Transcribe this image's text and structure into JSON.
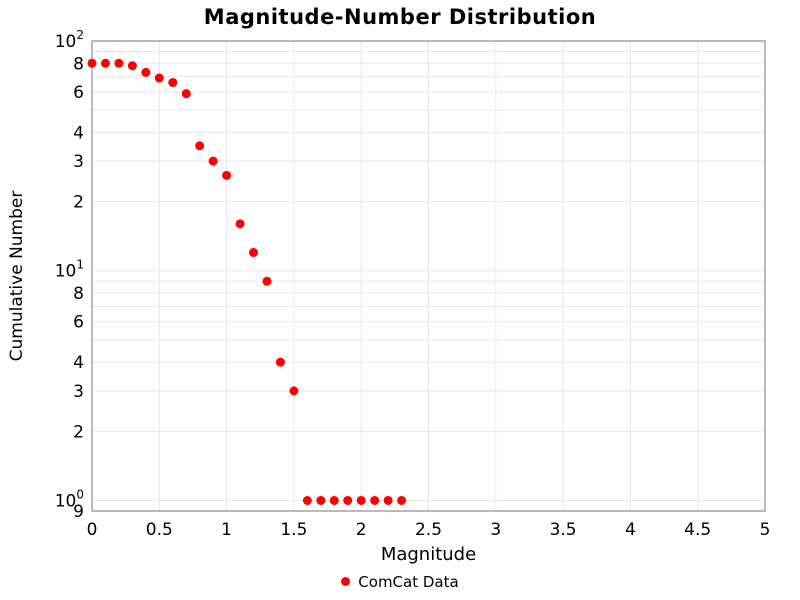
{
  "chart_data": {
    "type": "scatter",
    "title": "Magnitude-Number Distribution",
    "xlabel": "Magnitude",
    "ylabel": "Cumulative Number",
    "series": [
      {
        "name": "ComCat Data",
        "marker_color": "#ff0000",
        "x": [
          0.0,
          0.1,
          0.2,
          0.3,
          0.4,
          0.5,
          0.6,
          0.7,
          0.8,
          0.9,
          1.0,
          1.1,
          1.2,
          1.3,
          1.4,
          1.5,
          1.6,
          1.7,
          1.8,
          1.9,
          2.0,
          2.1,
          2.2,
          2.3
        ],
        "y": [
          80,
          80,
          80,
          78,
          73,
          69,
          66,
          59,
          35,
          30,
          26,
          16,
          12,
          9,
          4,
          3,
          1,
          1,
          1,
          1,
          1,
          1,
          1,
          1
        ]
      }
    ],
    "legend": [
      {
        "name": "ComCat Data",
        "color": "#ff0000"
      }
    ],
    "legend_position": "bottom-center",
    "x_scale": "linear",
    "y_scale": "log",
    "xlim": [
      0,
      5
    ],
    "ylim": [
      0.9,
      100
    ],
    "grid": true,
    "x_ticks": [
      {
        "v": 0,
        "label": "0"
      },
      {
        "v": 0.5,
        "label": "0.5"
      },
      {
        "v": 1,
        "label": "1"
      },
      {
        "v": 1.5,
        "label": "1.5"
      },
      {
        "v": 2,
        "label": "2"
      },
      {
        "v": 2.5,
        "label": "2.5"
      },
      {
        "v": 3,
        "label": "3"
      },
      {
        "v": 3.5,
        "label": "3.5"
      },
      {
        "v": 4,
        "label": "4"
      },
      {
        "v": 4.5,
        "label": "4.5"
      },
      {
        "v": 5,
        "label": "5"
      }
    ],
    "y_ticks": [
      {
        "v": 100,
        "base": "10",
        "exp": "2"
      },
      {
        "v": 80,
        "label": "8"
      },
      {
        "v": 60,
        "label": "6"
      },
      {
        "v": 40,
        "label": "4"
      },
      {
        "v": 30,
        "label": "3"
      },
      {
        "v": 20,
        "label": "2"
      },
      {
        "v": 10,
        "base": "10",
        "exp": "1"
      },
      {
        "v": 8,
        "label": "8"
      },
      {
        "v": 6,
        "label": "6"
      },
      {
        "v": 4,
        "label": "4"
      },
      {
        "v": 3,
        "label": "3"
      },
      {
        "v": 2,
        "label": "2"
      },
      {
        "v": 1,
        "base": "10",
        "exp": "0"
      },
      {
        "v": 0.9,
        "label": "9"
      }
    ],
    "x_gridlines": [
      0.5,
      1,
      1.5,
      2,
      2.5,
      3,
      3.5,
      4,
      4.5
    ],
    "y_gridlines": [
      90,
      80,
      70,
      60,
      50,
      40,
      30,
      20,
      10,
      9,
      8,
      7,
      6,
      5,
      4,
      3,
      2,
      1
    ],
    "colors": {
      "marker": "#ff0000",
      "grid": "#e8e8e8",
      "frame": "#a3a3a3",
      "text": "#000000",
      "background": "#ffffff"
    }
  }
}
